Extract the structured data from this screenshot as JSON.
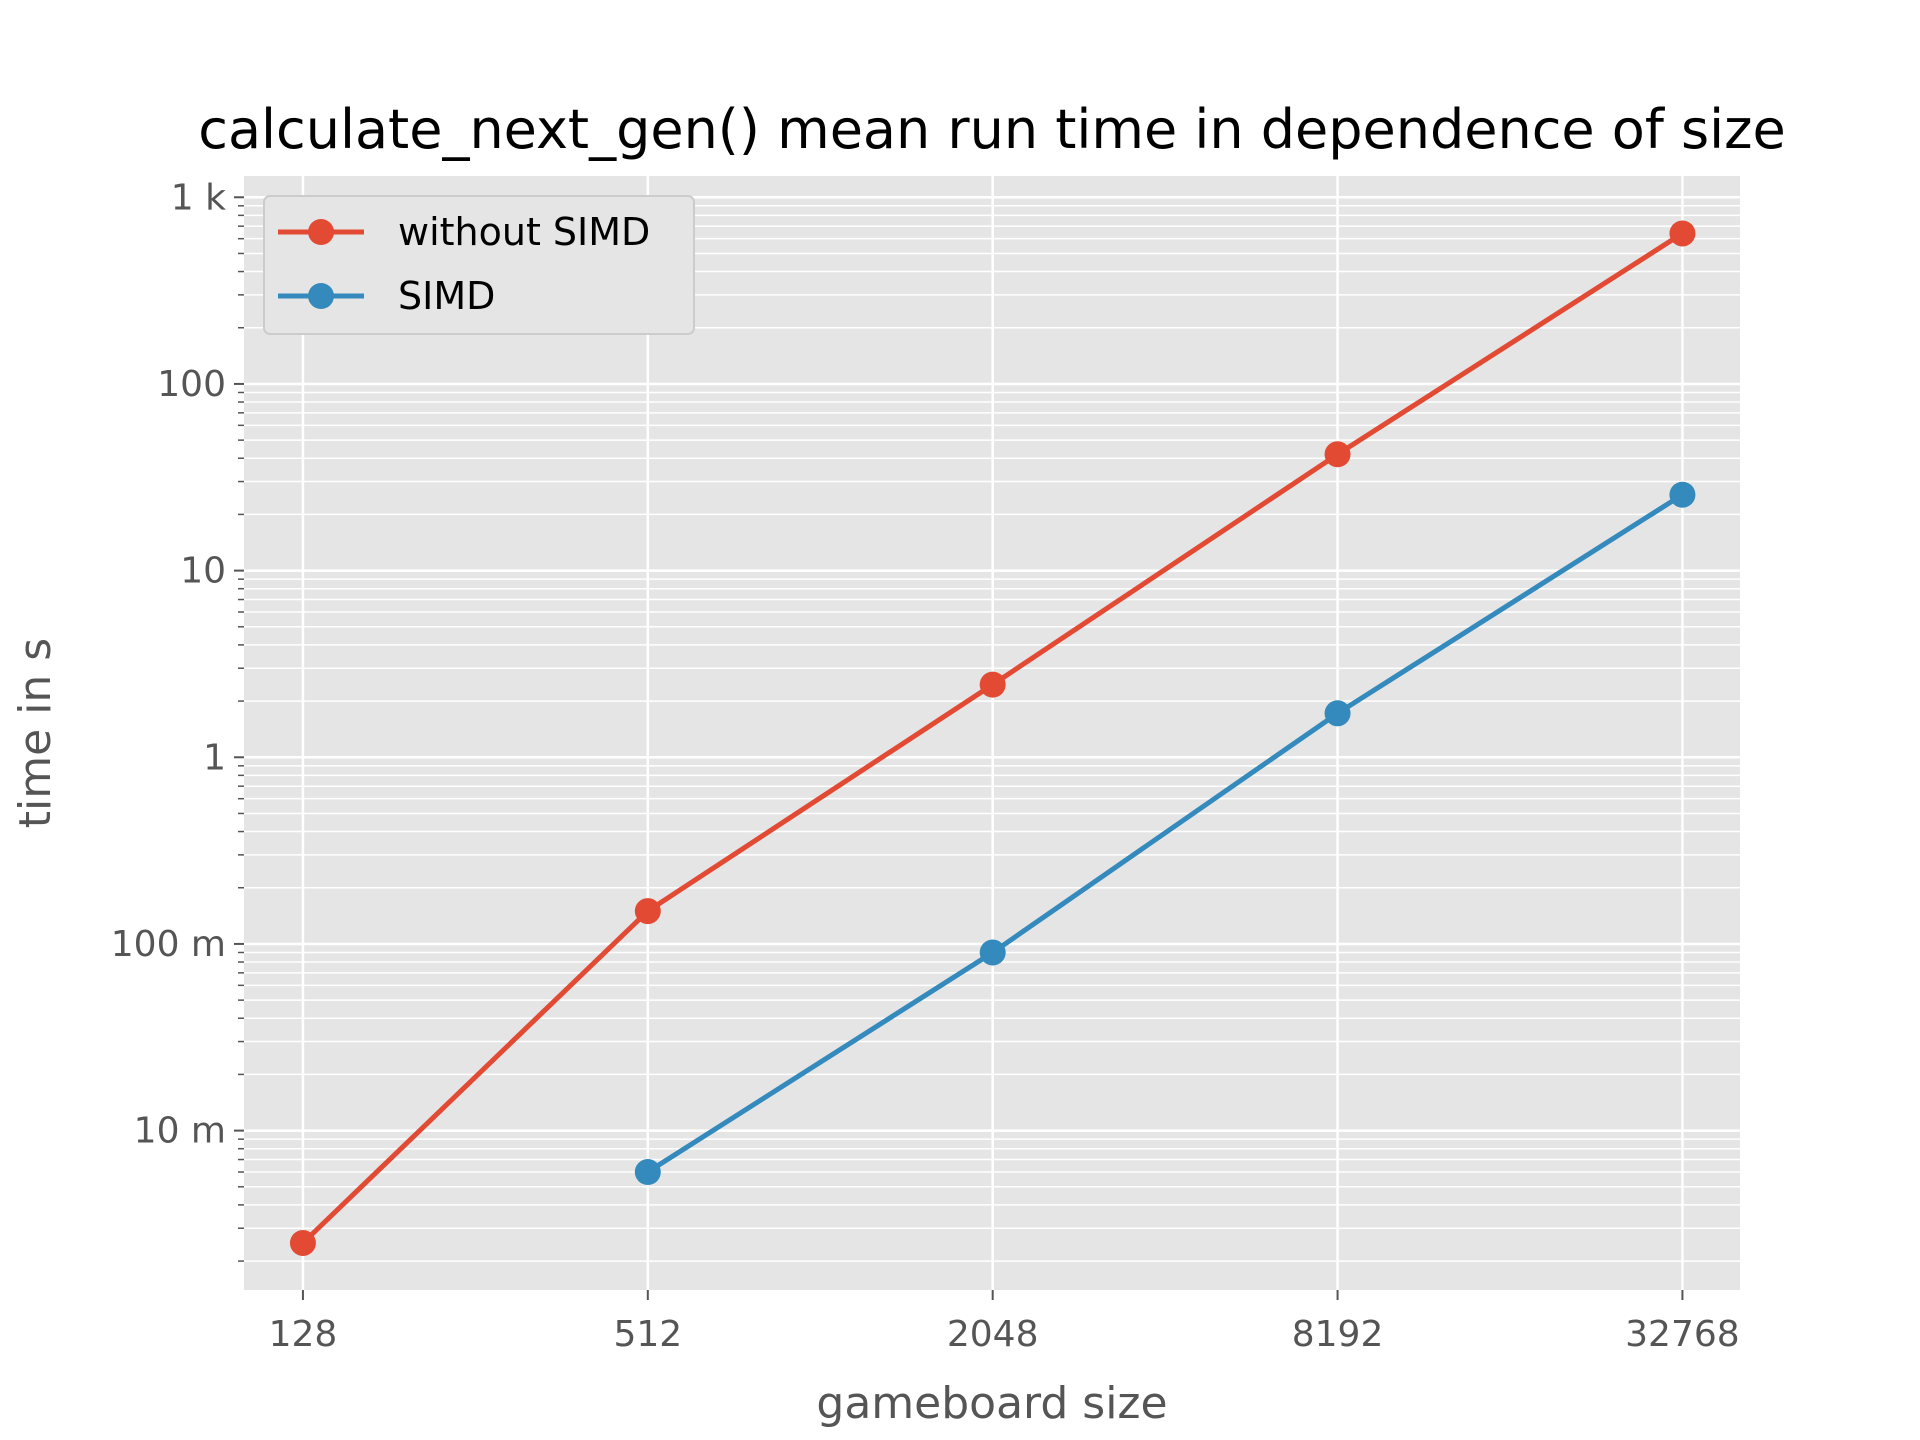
{
  "chart_data": {
    "type": "line",
    "title": "calculate_next_gen() mean run time in dependence of size",
    "xlabel": "gameboard size",
    "ylabel": "time in s",
    "x_scale": "log2",
    "y_scale": "log10",
    "x_ticks": [
      128,
      512,
      2048,
      8192,
      32768
    ],
    "x_tick_labels": [
      "128",
      "512",
      "2048",
      "8192",
      "32768"
    ],
    "y_ticks": [
      0.01,
      0.1,
      1,
      10,
      100,
      1000
    ],
    "y_tick_labels": [
      "10 m",
      "100 m",
      "1",
      "10",
      "100",
      "1 k"
    ],
    "xlim": [
      101,
      41300
    ],
    "ylim": [
      0.0014,
      1300
    ],
    "grid": true,
    "legend_position": "upper-left",
    "series": [
      {
        "name": "without SIMD",
        "color": "#E24A33",
        "x": [
          128,
          512,
          2048,
          8192,
          32768
        ],
        "y": [
          0.0025,
          0.15,
          2.45,
          42,
          640
        ]
      },
      {
        "name": "SIMD",
        "color": "#348ABD",
        "x": [
          512,
          2048,
          8192,
          32768
        ],
        "y": [
          0.006,
          0.09,
          1.72,
          25.5
        ]
      }
    ]
  }
}
